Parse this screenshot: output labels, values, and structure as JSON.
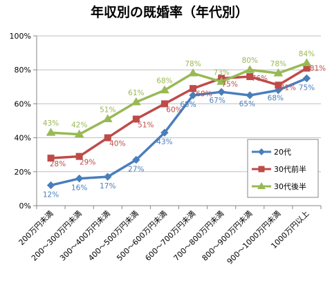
{
  "chart_data": {
    "type": "line",
    "title": "年収別の既婚率（年代別）",
    "xlabel": "",
    "ylabel": "",
    "categories": [
      "200万円未満",
      "200～300万円未満",
      "300～400万円未満",
      "400～500万円未満",
      "500～600万円未満",
      "600～700万円未満",
      "700～800万円未満",
      "800～900万円未満",
      "900～1000万円未満",
      "1000万円以上"
    ],
    "ylim": [
      0,
      100
    ],
    "yticks": [
      0,
      20,
      40,
      60,
      80,
      100
    ],
    "ytick_labels": [
      "0%",
      "20%",
      "40%",
      "60%",
      "80%",
      "100%"
    ],
    "grid": true,
    "legend_position": "right",
    "series": [
      {
        "name": "20代",
        "color": "#4a7ebb",
        "marker": "diamond",
        "values": [
          12,
          16,
          17,
          27,
          43,
          65,
          67,
          65,
          68,
          75
        ],
        "labels": [
          "12%",
          "16%",
          "17%",
          "27%",
          "43%",
          "65%",
          "67%",
          "65%",
          "68%",
          "75%"
        ]
      },
      {
        "name": "30代前半",
        "color": "#be4b48",
        "marker": "square",
        "values": [
          28,
          29,
          40,
          51,
          60,
          69,
          75,
          76,
          71,
          81
        ],
        "labels": [
          "28%",
          "29%",
          "40%",
          "51%",
          "60%",
          "69%",
          "75%",
          "76%",
          "71%",
          "81%"
        ]
      },
      {
        "name": "30代後半",
        "color": "#98b954",
        "marker": "triangle",
        "values": [
          43,
          42,
          51,
          61,
          68,
          78,
          73,
          80,
          78,
          84
        ],
        "labels": [
          "43%",
          "42%",
          "51%",
          "61%",
          "68%",
          "78%",
          "73%",
          "80%",
          "78%",
          "84%"
        ]
      }
    ]
  }
}
